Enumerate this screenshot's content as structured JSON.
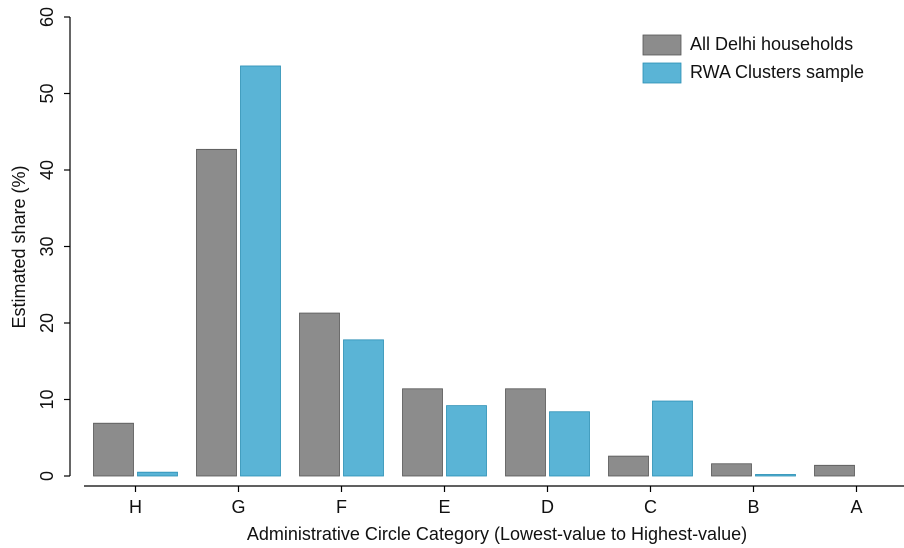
{
  "chart_data": {
    "type": "bar",
    "y_label": "Estimated share (%)",
    "x_label": "Administrative Circle Category (Lowest-value to Highest-value)",
    "categories": [
      "H",
      "G",
      "F",
      "E",
      "D",
      "C",
      "B",
      "A"
    ],
    "series": [
      {
        "name": "All Delhi households",
        "color": "#8c8c8c",
        "values": [
          6.9,
          42.7,
          21.3,
          11.4,
          11.4,
          2.6,
          1.6,
          1.4
        ]
      },
      {
        "name": "RWA Clusters sample",
        "color": "#5ab4d6",
        "values": [
          0.5,
          53.6,
          17.8,
          9.2,
          8.4,
          9.8,
          0.2,
          0
        ]
      }
    ],
    "ylim": [
      0,
      60
    ],
    "yticks": [
      0,
      10,
      20,
      30,
      40,
      50,
      60
    ],
    "legend": "top-right"
  }
}
